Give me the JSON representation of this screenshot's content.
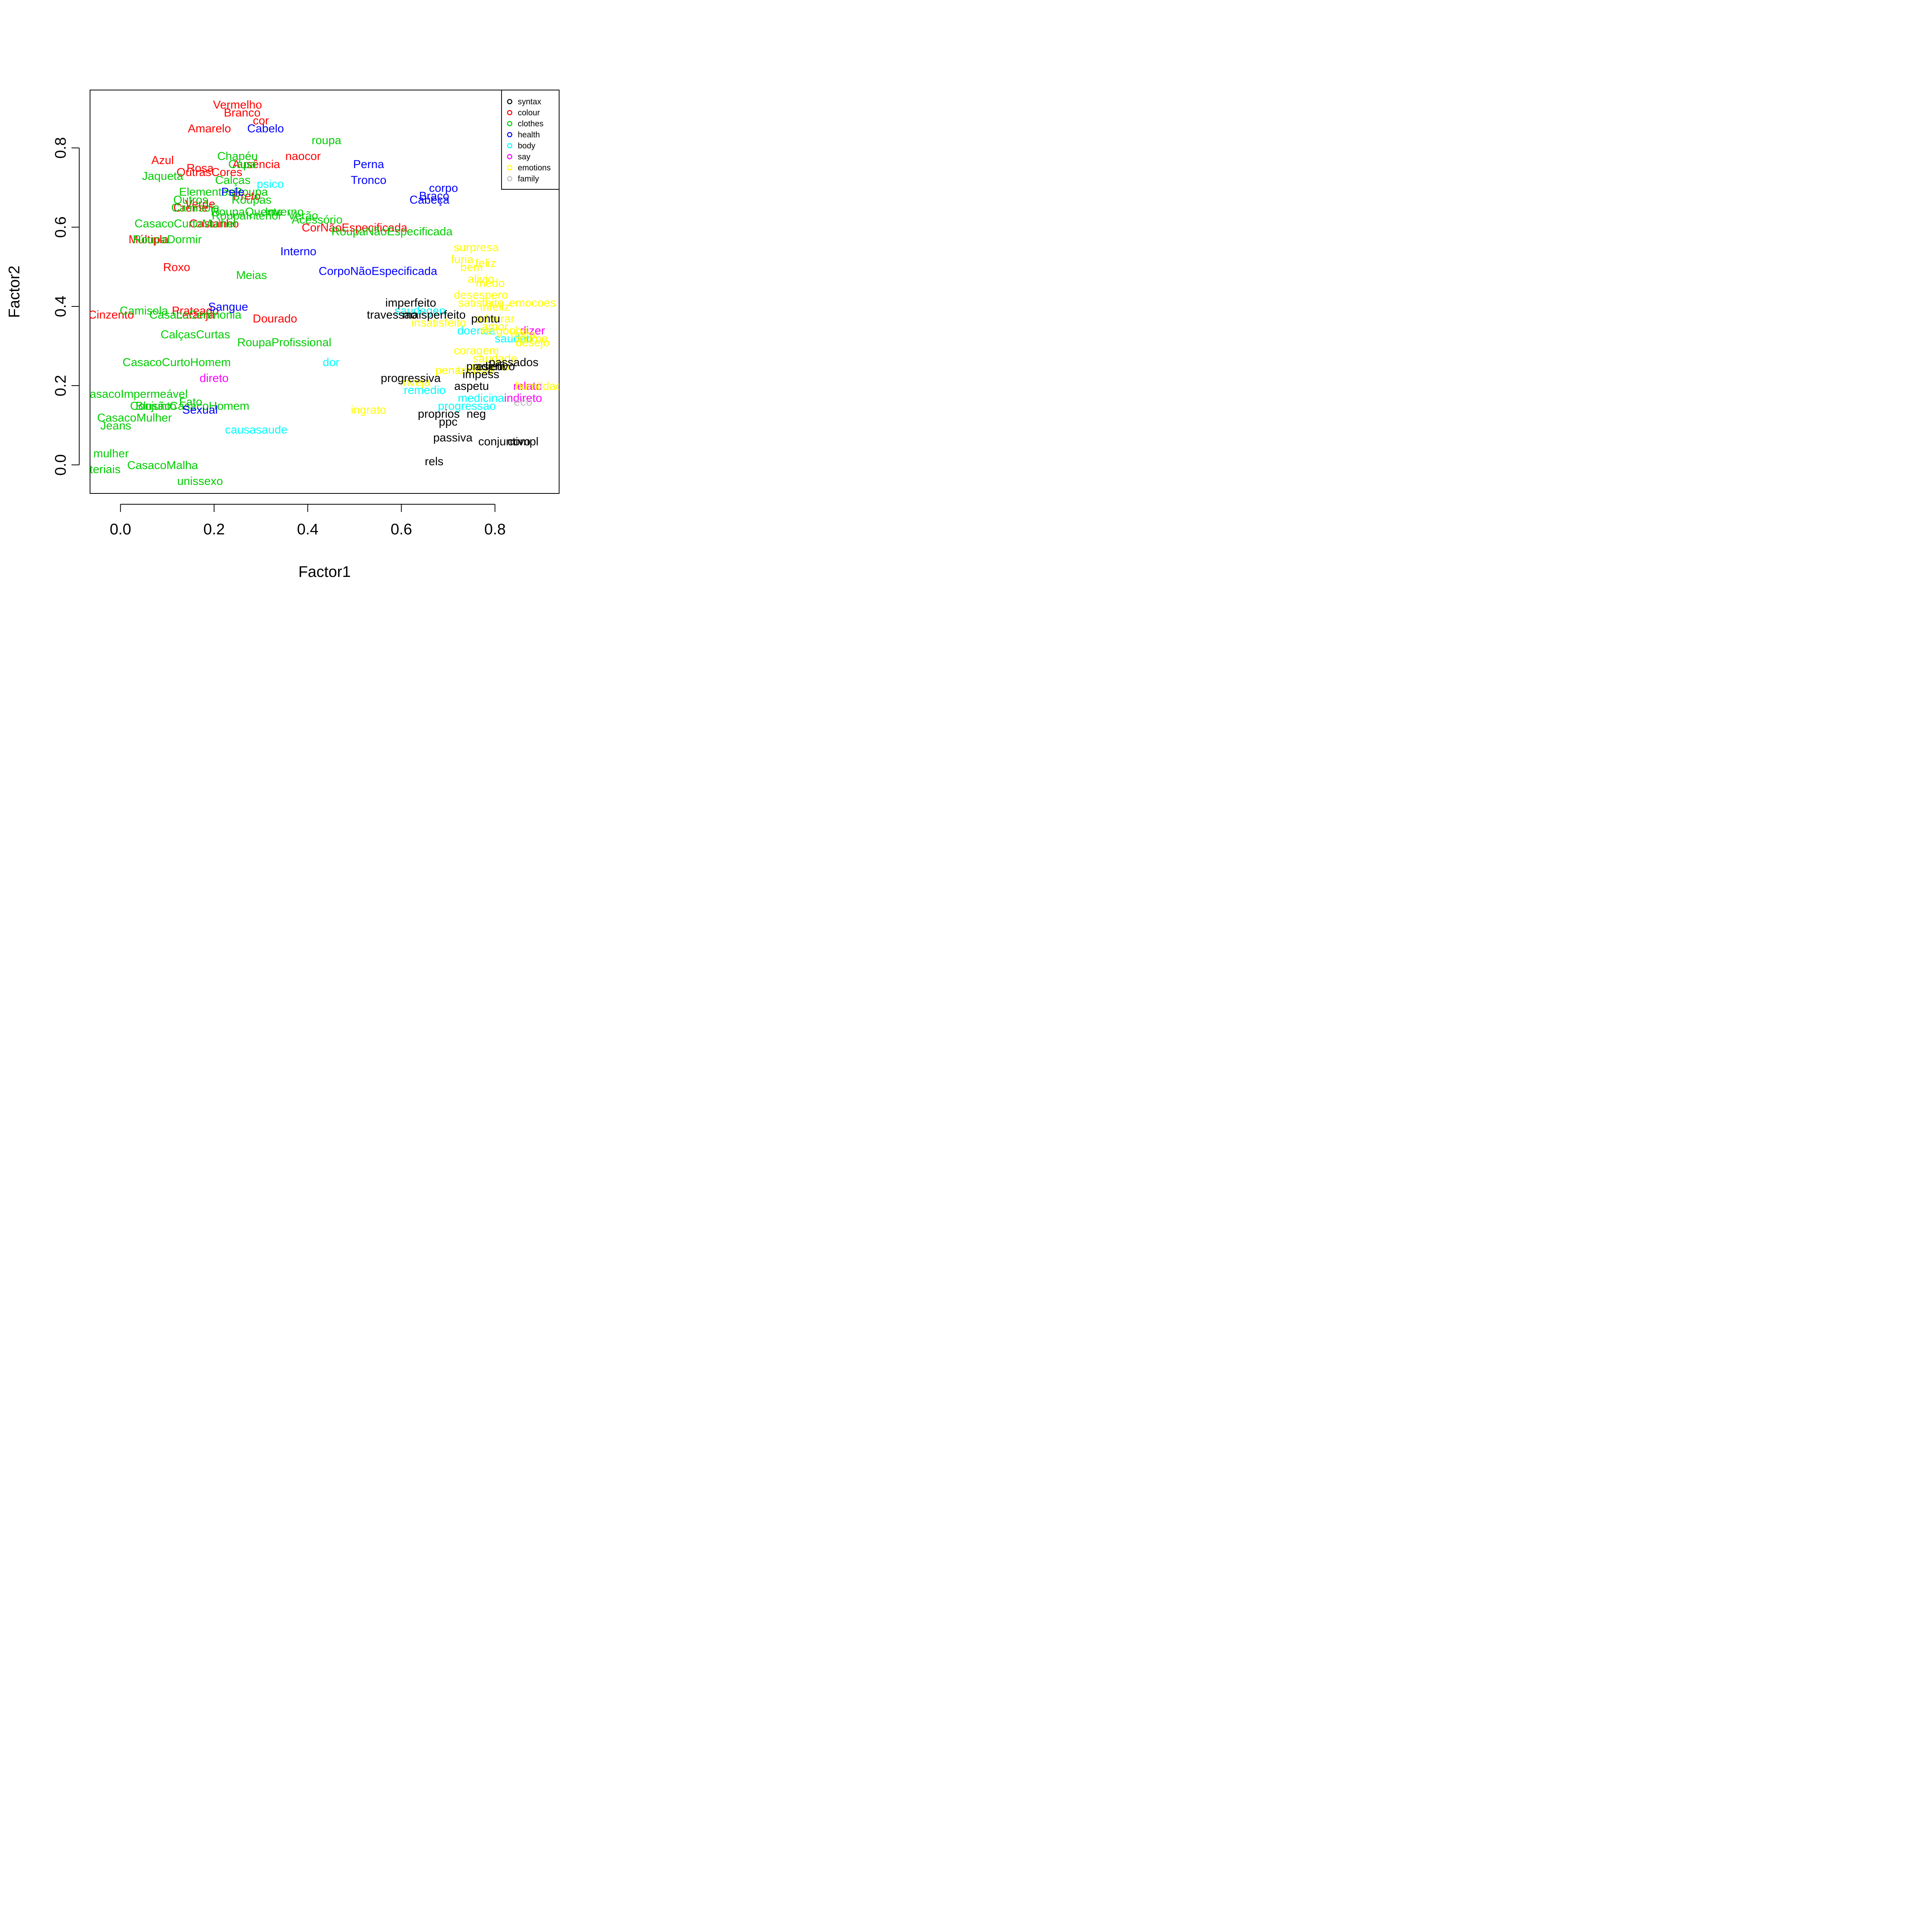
{
  "chart_data": {
    "type": "scatter",
    "title": "",
    "xlabel": "Factor1",
    "ylabel": "Factor2",
    "xlim": [
      -0.065,
      0.937
    ],
    "ylim": [
      -0.072,
      0.946
    ],
    "x_ticks": [
      "0.0",
      "0.2",
      "0.4",
      "0.6",
      "0.8"
    ],
    "y_ticks": [
      "0.0",
      "0.2",
      "0.4",
      "0.6",
      "0.8"
    ],
    "x_tick_values": [
      0.0,
      0.2,
      0.4,
      0.6,
      0.8
    ],
    "y_tick_values": [
      0.0,
      0.2,
      0.4,
      0.6,
      0.8
    ],
    "grid": false,
    "legend_position": "top-right",
    "colors": {
      "syntax": "#000000",
      "colour": "#ff0000",
      "clothes": "#00cd00",
      "health": "#0000ff",
      "body": "#00ffff",
      "say": "#ff00ff",
      "emotions": "#ffff00",
      "family": "#bebebe"
    },
    "legend": [
      {
        "label": "syntax",
        "color": "#000000"
      },
      {
        "label": "colour",
        "color": "#ff0000"
      },
      {
        "label": "clothes",
        "color": "#00cd00"
      },
      {
        "label": "health",
        "color": "#0000ff"
      },
      {
        "label": "body",
        "color": "#00ffff"
      },
      {
        "label": "say",
        "color": "#ff00ff"
      },
      {
        "label": "emotions",
        "color": "#ffff00"
      },
      {
        "label": "family",
        "color": "#bebebe"
      }
    ],
    "series": [
      {
        "name": "colour",
        "points": [
          {
            "label": "Vermelho",
            "x": 0.25,
            "y": 0.91
          },
          {
            "label": "Branco",
            "x": 0.26,
            "y": 0.89
          },
          {
            "label": "cor",
            "x": 0.3,
            "y": 0.87
          },
          {
            "label": "Amarelo",
            "x": 0.19,
            "y": 0.85
          },
          {
            "label": "naocor",
            "x": 0.39,
            "y": 0.78
          },
          {
            "label": "Azul",
            "x": 0.09,
            "y": 0.77
          },
          {
            "label": "Rosa",
            "x": 0.17,
            "y": 0.75
          },
          {
            "label": "Ausência",
            "x": 0.29,
            "y": 0.76
          },
          {
            "label": "OutrasCores",
            "x": 0.19,
            "y": 0.74
          },
          {
            "label": "Preto",
            "x": 0.27,
            "y": 0.68
          },
          {
            "label": "Verde",
            "x": 0.17,
            "y": 0.66
          },
          {
            "label": "Creme",
            "x": 0.15,
            "y": 0.65
          },
          {
            "label": "Castanho",
            "x": 0.2,
            "y": 0.61
          },
          {
            "label": "CorNãoEspecificada",
            "x": 0.5,
            "y": 0.6
          },
          {
            "label": "Múltipla",
            "x": 0.06,
            "y": 0.57
          },
          {
            "label": "Roxo",
            "x": 0.12,
            "y": 0.5
          },
          {
            "label": "Cinzento",
            "x": -0.02,
            "y": 0.38
          },
          {
            "label": "Prateado",
            "x": 0.16,
            "y": 0.39
          },
          {
            "label": "Laranja",
            "x": 0.16,
            "y": 0.38
          },
          {
            "label": "Dourado",
            "x": 0.33,
            "y": 0.37
          }
        ]
      },
      {
        "name": "clothes",
        "points": [
          {
            "label": "roupa",
            "x": 0.44,
            "y": 0.82
          },
          {
            "label": "Chapéu",
            "x": 0.25,
            "y": 0.78
          },
          {
            "label": "Capa",
            "x": 0.26,
            "y": 0.76
          },
          {
            "label": "Jaqueta",
            "x": 0.09,
            "y": 0.73
          },
          {
            "label": "Calças",
            "x": 0.24,
            "y": 0.72
          },
          {
            "label": "ElementosRoupa",
            "x": 0.22,
            "y": 0.69
          },
          {
            "label": "Outros",
            "x": 0.15,
            "y": 0.67
          },
          {
            "label": "Roupas",
            "x": 0.28,
            "y": 0.67
          },
          {
            "label": "Camisola",
            "x": 0.16,
            "y": 0.65
          },
          {
            "label": "RoupaQuente",
            "x": 0.27,
            "y": 0.64
          },
          {
            "label": "Inverno",
            "x": 0.35,
            "y": 0.64
          },
          {
            "label": "Verão",
            "x": 0.39,
            "y": 0.63
          },
          {
            "label": "RoupaInterior",
            "x": 0.27,
            "y": 0.63
          },
          {
            "label": "CasacoCurtoMulher",
            "x": 0.14,
            "y": 0.61
          },
          {
            "label": "Acessório",
            "x": 0.42,
            "y": 0.62
          },
          {
            "label": "RoupaNãoEspecificada",
            "x": 0.58,
            "y": 0.59
          },
          {
            "label": "RoupaDormir",
            "x": 0.1,
            "y": 0.57
          },
          {
            "label": "Meias",
            "x": 0.28,
            "y": 0.48
          },
          {
            "label": "Camisola",
            "x": 0.05,
            "y": 0.39
          },
          {
            "label": "CasacoCerimonia",
            "x": 0.16,
            "y": 0.38
          },
          {
            "label": "CalçasCurtas",
            "x": 0.16,
            "y": 0.33
          },
          {
            "label": "RoupaProfissional",
            "x": 0.35,
            "y": 0.31
          },
          {
            "label": "CasacoCurtoHomem",
            "x": 0.12,
            "y": 0.26
          },
          {
            "label": "CasacoImpermeável",
            "x": 0.03,
            "y": 0.18
          },
          {
            "label": "Blusão",
            "x": 0.07,
            "y": 0.15
          },
          {
            "label": "CasacoHomem",
            "x": 0.19,
            "y": 0.15
          },
          {
            "label": "Conjunto",
            "x": 0.07,
            "y": 0.15
          },
          {
            "label": "Fato",
            "x": 0.15,
            "y": 0.16
          },
          {
            "label": "CasacoMulher",
            "x": 0.03,
            "y": 0.12
          },
          {
            "label": "Jeans",
            "x": -0.01,
            "y": 0.1
          },
          {
            "label": "mulher",
            "x": -0.02,
            "y": 0.03
          },
          {
            "label": "materiais",
            "x": -0.05,
            "y": -0.01
          },
          {
            "label": "CasacoMalha",
            "x": 0.09,
            "y": 0.0
          },
          {
            "label": "unissexo",
            "x": 0.17,
            "y": -0.04
          }
        ]
      },
      {
        "name": "health",
        "points": [
          {
            "label": "Cabelo",
            "x": 0.31,
            "y": 0.85
          },
          {
            "label": "Perna",
            "x": 0.53,
            "y": 0.76
          },
          {
            "label": "Tronco",
            "x": 0.53,
            "y": 0.72
          },
          {
            "label": "corpo",
            "x": 0.69,
            "y": 0.7
          },
          {
            "label": "Braço",
            "x": 0.67,
            "y": 0.68
          },
          {
            "label": "Cabeça",
            "x": 0.66,
            "y": 0.67
          },
          {
            "label": "Pele",
            "x": 0.24,
            "y": 0.69
          },
          {
            "label": "Interno",
            "x": 0.38,
            "y": 0.54
          },
          {
            "label": "CorpoNãoEspecificada",
            "x": 0.55,
            "y": 0.49
          },
          {
            "label": "Sangue",
            "x": 0.23,
            "y": 0.4
          },
          {
            "label": "Sexual",
            "x": 0.17,
            "y": 0.14
          }
        ]
      },
      {
        "name": "body",
        "points": [
          {
            "label": "psico",
            "x": 0.32,
            "y": 0.71
          },
          {
            "label": "saudegen",
            "x": 0.64,
            "y": 0.39
          },
          {
            "label": "doenca",
            "x": 0.76,
            "y": 0.34
          },
          {
            "label": "saudeb",
            "x": 0.84,
            "y": 0.32
          },
          {
            "label": "dor",
            "x": 0.45,
            "y": 0.26
          },
          {
            "label": "remedio",
            "x": 0.65,
            "y": 0.19
          },
          {
            "label": "medicina",
            "x": 0.77,
            "y": 0.17
          },
          {
            "label": "progressao",
            "x": 0.74,
            "y": 0.15
          },
          {
            "label": "causasaude",
            "x": 0.29,
            "y": 0.09
          }
        ]
      },
      {
        "name": "say",
        "points": [
          {
            "label": "direto",
            "x": 0.2,
            "y": 0.22
          },
          {
            "label": "dizer",
            "x": 0.88,
            "y": 0.34
          },
          {
            "label": "relato",
            "x": 0.87,
            "y": 0.2
          },
          {
            "label": "indireto",
            "x": 0.86,
            "y": 0.17
          }
        ]
      },
      {
        "name": "emotions",
        "points": [
          {
            "label": "surpresa",
            "x": 0.76,
            "y": 0.55
          },
          {
            "label": "furia",
            "x": 0.73,
            "y": 0.52
          },
          {
            "label": "bem",
            "x": 0.75,
            "y": 0.5
          },
          {
            "label": "feliz",
            "x": 0.78,
            "y": 0.51
          },
          {
            "label": "alivio",
            "x": 0.77,
            "y": 0.47
          },
          {
            "label": "medo",
            "x": 0.79,
            "y": 0.46
          },
          {
            "label": "desespero",
            "x": 0.77,
            "y": 0.43
          },
          {
            "label": "satisfeito",
            "x": 0.77,
            "y": 0.41
          },
          {
            "label": "emocoes",
            "x": 0.88,
            "y": 0.41
          },
          {
            "label": "infeliz",
            "x": 0.8,
            "y": 0.4
          },
          {
            "label": "admirar",
            "x": 0.8,
            "y": 0.37
          },
          {
            "label": "insatisfeito",
            "x": 0.68,
            "y": 0.36
          },
          {
            "label": "amor",
            "x": 0.8,
            "y": 0.35
          },
          {
            "label": "vergonha",
            "x": 0.82,
            "y": 0.34
          },
          {
            "label": "raiva",
            "x": 0.86,
            "y": 0.33
          },
          {
            "label": "ciume",
            "x": 0.88,
            "y": 0.32
          },
          {
            "label": "desejo",
            "x": 0.88,
            "y": 0.31
          },
          {
            "label": "coragem",
            "x": 0.76,
            "y": 0.29
          },
          {
            "label": "saudade",
            "x": 0.8,
            "y": 0.27
          },
          {
            "label": "orgulho",
            "x": 0.79,
            "y": 0.25
          },
          {
            "label": "pena",
            "x": 0.7,
            "y": 0.24
          },
          {
            "label": "tristeza",
            "x": 0.76,
            "y": 0.24
          },
          {
            "label": "inveja",
            "x": 0.63,
            "y": 0.21
          },
          {
            "label": "ingrato",
            "x": 0.53,
            "y": 0.14
          },
          {
            "label": "humildade",
            "x": 0.9,
            "y": 0.2
          }
        ]
      },
      {
        "name": "syntax",
        "points": [
          {
            "label": "imperfeito",
            "x": 0.62,
            "y": 0.41
          },
          {
            "label": "travessao",
            "x": 0.58,
            "y": 0.38
          },
          {
            "label": "maisperfeito",
            "x": 0.67,
            "y": 0.38
          },
          {
            "label": "pontu",
            "x": 0.78,
            "y": 0.37
          },
          {
            "label": "passados",
            "x": 0.84,
            "y": 0.26
          },
          {
            "label": "adjetivo",
            "x": 0.8,
            "y": 0.25
          },
          {
            "label": "present",
            "x": 0.78,
            "y": 0.25
          },
          {
            "label": "impess",
            "x": 0.77,
            "y": 0.23
          },
          {
            "label": "progressiva",
            "x": 0.62,
            "y": 0.22
          },
          {
            "label": "aspetu",
            "x": 0.75,
            "y": 0.2
          },
          {
            "label": "proprios",
            "x": 0.68,
            "y": 0.13
          },
          {
            "label": "neg",
            "x": 0.76,
            "y": 0.13
          },
          {
            "label": "ppc",
            "x": 0.7,
            "y": 0.11
          },
          {
            "label": "passiva",
            "x": 0.71,
            "y": 0.07
          },
          {
            "label": "conjuntivo",
            "x": 0.82,
            "y": 0.06
          },
          {
            "label": "compl",
            "x": 0.86,
            "y": 0.06
          },
          {
            "label": "rels",
            "x": 0.67,
            "y": 0.01
          }
        ]
      },
      {
        "name": "family",
        "points": [
          {
            "label": "eco",
            "x": 0.86,
            "y": 0.16
          }
        ]
      }
    ]
  }
}
